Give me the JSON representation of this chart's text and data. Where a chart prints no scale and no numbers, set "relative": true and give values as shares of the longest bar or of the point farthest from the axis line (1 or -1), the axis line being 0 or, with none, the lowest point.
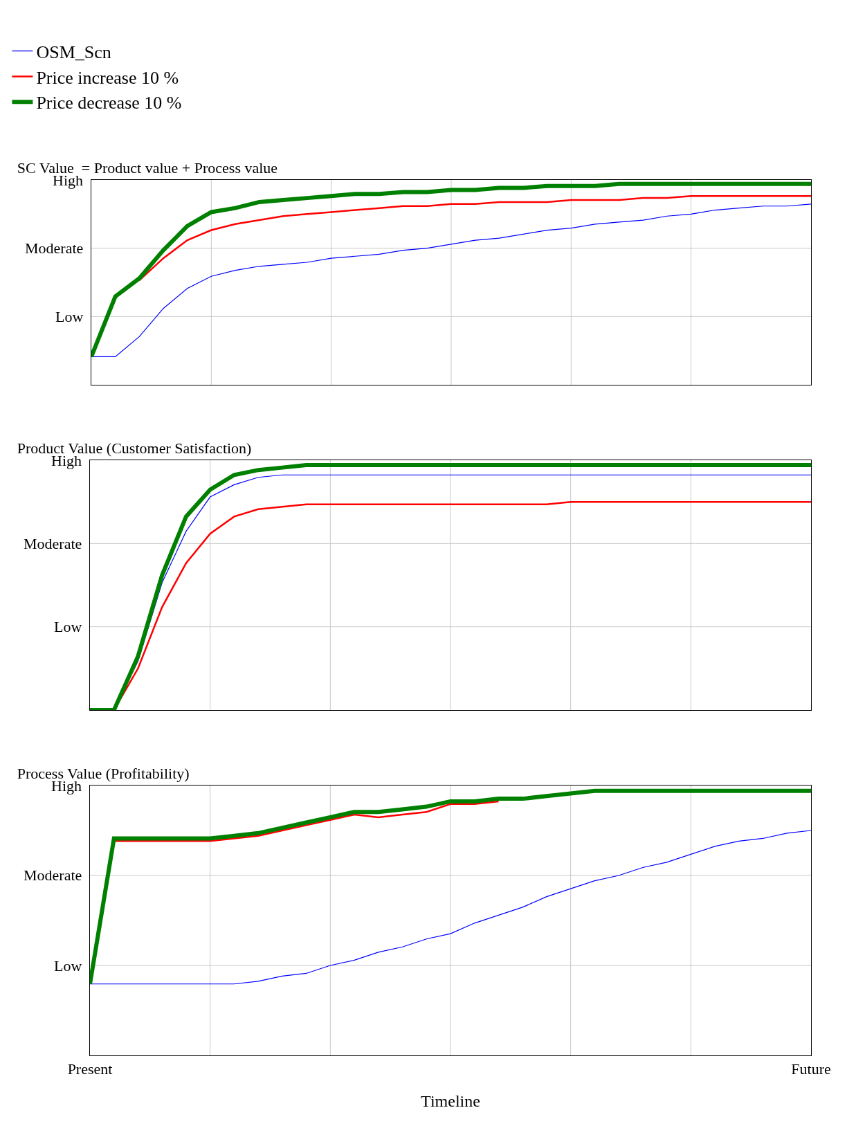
{
  "chart_data": [
    {
      "type": "line",
      "title": "SC Value  = Product value + Process value",
      "relative": true,
      "legend": "top",
      "grid": true,
      "marker": "none",
      "line_style": "solid",
      "annotations": [
        "High",
        "Moderate",
        "Low"
      ],
      "categories": [
        null,
        null,
        null,
        null,
        null,
        null,
        null,
        null,
        null,
        null,
        null,
        null,
        null,
        null,
        null,
        null,
        null,
        null,
        null,
        null,
        null,
        null,
        null,
        null,
        null,
        null,
        null,
        null,
        null,
        null,
        null
      ],
      "series": [
        {
          "name": "OSM_Scn",
          "color": "#0000ff",
          "values": [
            0.14,
            0.14,
            0.24,
            0.38,
            0.48,
            0.54,
            0.57,
            0.59,
            0.6,
            0.61,
            0.63,
            0.64,
            0.65,
            0.67,
            0.68,
            0.7,
            0.72,
            0.73,
            0.75,
            0.77,
            0.78,
            0.8,
            0.81,
            0.82,
            0.84,
            0.85,
            0.87,
            0.88,
            0.89,
            0.89,
            0.9
          ]
        },
        {
          "name": "Price increase 10 %",
          "color": "#ff0000",
          "values": [
            null,
            null,
            0.52,
            0.63,
            0.72,
            0.77,
            0.8,
            0.82,
            0.84,
            0.85,
            0.86,
            0.87,
            0.88,
            0.89,
            0.89,
            0.9,
            0.9,
            0.91,
            0.91,
            0.91,
            0.92,
            0.92,
            0.92,
            0.93,
            0.93,
            0.94,
            0.94,
            0.94,
            0.94,
            0.94,
            0.94
          ]
        },
        {
          "name": "Price decrease 10 %",
          "color": "#008000",
          "values": [
            0.14,
            0.44,
            0.53,
            0.67,
            0.79,
            0.86,
            0.88,
            0.91,
            0.92,
            0.93,
            0.94,
            0.95,
            0.95,
            0.96,
            0.96,
            0.97,
            0.97,
            0.98,
            0.98,
            0.99,
            0.99,
            0.99,
            1,
            1,
            1,
            1,
            1,
            1,
            1,
            1,
            1
          ]
        }
      ]
    },
    {
      "type": "line",
      "title": "Product Value (Customer Satisfaction)",
      "relative": true,
      "grid": true,
      "marker": "none",
      "line_style": "solid",
      "annotations": [
        "High",
        "Moderate",
        "Low"
      ],
      "categories": [
        null,
        null,
        null,
        null,
        null,
        null,
        null,
        null,
        null,
        null,
        null,
        null,
        null,
        null,
        null,
        null,
        null,
        null,
        null,
        null,
        null,
        null,
        null,
        null,
        null,
        null,
        null,
        null,
        null,
        null,
        null
      ],
      "series": [
        {
          "color": "#0000ff",
          "values": [
            0,
            0,
            0.2,
            0.52,
            0.73,
            0.87,
            0.92,
            0.95,
            0.96,
            0.96,
            0.96,
            0.96,
            0.96,
            0.96,
            0.96,
            0.96,
            0.96,
            0.96,
            0.96,
            0.96,
            0.96,
            0.96,
            0.96,
            0.96,
            0.96,
            0.96,
            0.96,
            0.96,
            0.96,
            0.96,
            0.96
          ]
        },
        {
          "color": "#ff0000",
          "values": [
            0,
            0,
            0.17,
            0.42,
            0.6,
            0.72,
            0.79,
            0.82,
            0.83,
            0.84,
            0.84,
            0.84,
            0.84,
            0.84,
            0.84,
            0.84,
            0.84,
            0.84,
            0.84,
            0.84,
            0.85,
            0.85,
            0.85,
            0.85,
            0.85,
            0.85,
            0.85,
            0.85,
            0.85,
            0.85,
            0.85
          ]
        },
        {
          "color": "#008000",
          "values": [
            0,
            0,
            0.22,
            0.55,
            0.79,
            0.9,
            0.96,
            0.98,
            0.99,
            1,
            1,
            1,
            1,
            1,
            1,
            1,
            1,
            1,
            1,
            1,
            1,
            1,
            1,
            1,
            1,
            1,
            1,
            1,
            1,
            1,
            1
          ]
        }
      ]
    },
    {
      "type": "line",
      "title": "Process Value (Profitability)",
      "xlabel": "Timeline",
      "relative": true,
      "grid": true,
      "marker": "none",
      "line_style": "solid",
      "annotations": [
        "High",
        "Moderate",
        "Low"
      ],
      "categories": [
        "Present",
        null,
        null,
        null,
        null,
        null,
        null,
        null,
        null,
        null,
        null,
        null,
        null,
        null,
        null,
        null,
        null,
        null,
        null,
        null,
        null,
        null,
        null,
        null,
        null,
        null,
        null,
        null,
        null,
        null,
        "Future"
      ],
      "series": [
        {
          "color": "#0000ff",
          "values": [
            0.27,
            0.27,
            0.27,
            0.27,
            0.27,
            0.27,
            0.27,
            0.28,
            0.3,
            0.31,
            0.34,
            0.36,
            0.39,
            0.41,
            0.44,
            0.46,
            0.5,
            0.53,
            0.56,
            0.6,
            0.63,
            0.66,
            0.68,
            0.71,
            0.73,
            0.76,
            0.79,
            0.81,
            0.82,
            0.84,
            0.85
          ]
        },
        {
          "color": "#ff0000",
          "values": [
            null,
            0.81,
            0.81,
            0.81,
            0.81,
            0.81,
            0.82,
            0.83,
            0.85,
            0.87,
            0.89,
            0.91,
            0.9,
            0.91,
            0.92,
            0.95,
            0.95,
            0.96,
            null,
            null,
            null,
            null,
            null,
            null,
            null,
            null,
            null,
            null,
            null,
            null,
            null
          ]
        },
        {
          "color": "#008000",
          "values": [
            0.27,
            0.82,
            0.82,
            0.82,
            0.82,
            0.82,
            0.83,
            0.84,
            0.86,
            0.88,
            0.9,
            0.92,
            0.92,
            0.93,
            0.94,
            0.96,
            0.96,
            0.97,
            0.97,
            0.98,
            0.99,
            1,
            1,
            1,
            1,
            1,
            1,
            1,
            1,
            1,
            1
          ]
        }
      ]
    }
  ]
}
